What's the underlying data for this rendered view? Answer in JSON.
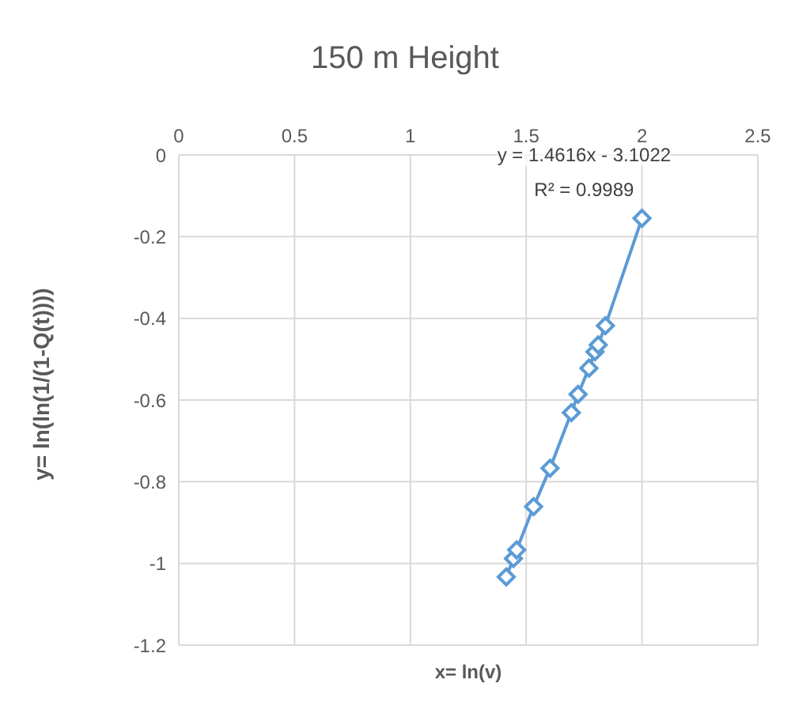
{
  "chart_data": {
    "type": "line",
    "title": "150 m Height",
    "xlabel": "x= ln(v)",
    "ylabel": "y= ln(ln(1/(1-Q(t))))",
    "x": [
      1.414,
      1.445,
      1.459,
      1.532,
      1.603,
      1.695,
      1.724,
      1.771,
      1.797,
      1.811,
      1.842,
      2.0
    ],
    "series": [
      {
        "color": "#5b9bd5",
        "values": [
          -1.033,
          -0.988,
          -0.967,
          -0.861,
          -0.767,
          -0.631,
          -0.586,
          -0.522,
          -0.482,
          -0.465,
          -0.418,
          -0.155
        ]
      }
    ],
    "xlim": [
      0,
      2.5
    ],
    "xticks": [
      0,
      0.5,
      1,
      1.5,
      2,
      2.5
    ],
    "ylim": [
      -1.2,
      0
    ],
    "yticks": [
      -1.2,
      -1,
      -0.8,
      -0.6,
      -0.4,
      -0.2,
      0
    ],
    "annotations": [
      "y = 1.4616x - 3.1022",
      "R² = 0.9989"
    ],
    "grid": true,
    "marker": "diamond",
    "line_style": "solid"
  }
}
